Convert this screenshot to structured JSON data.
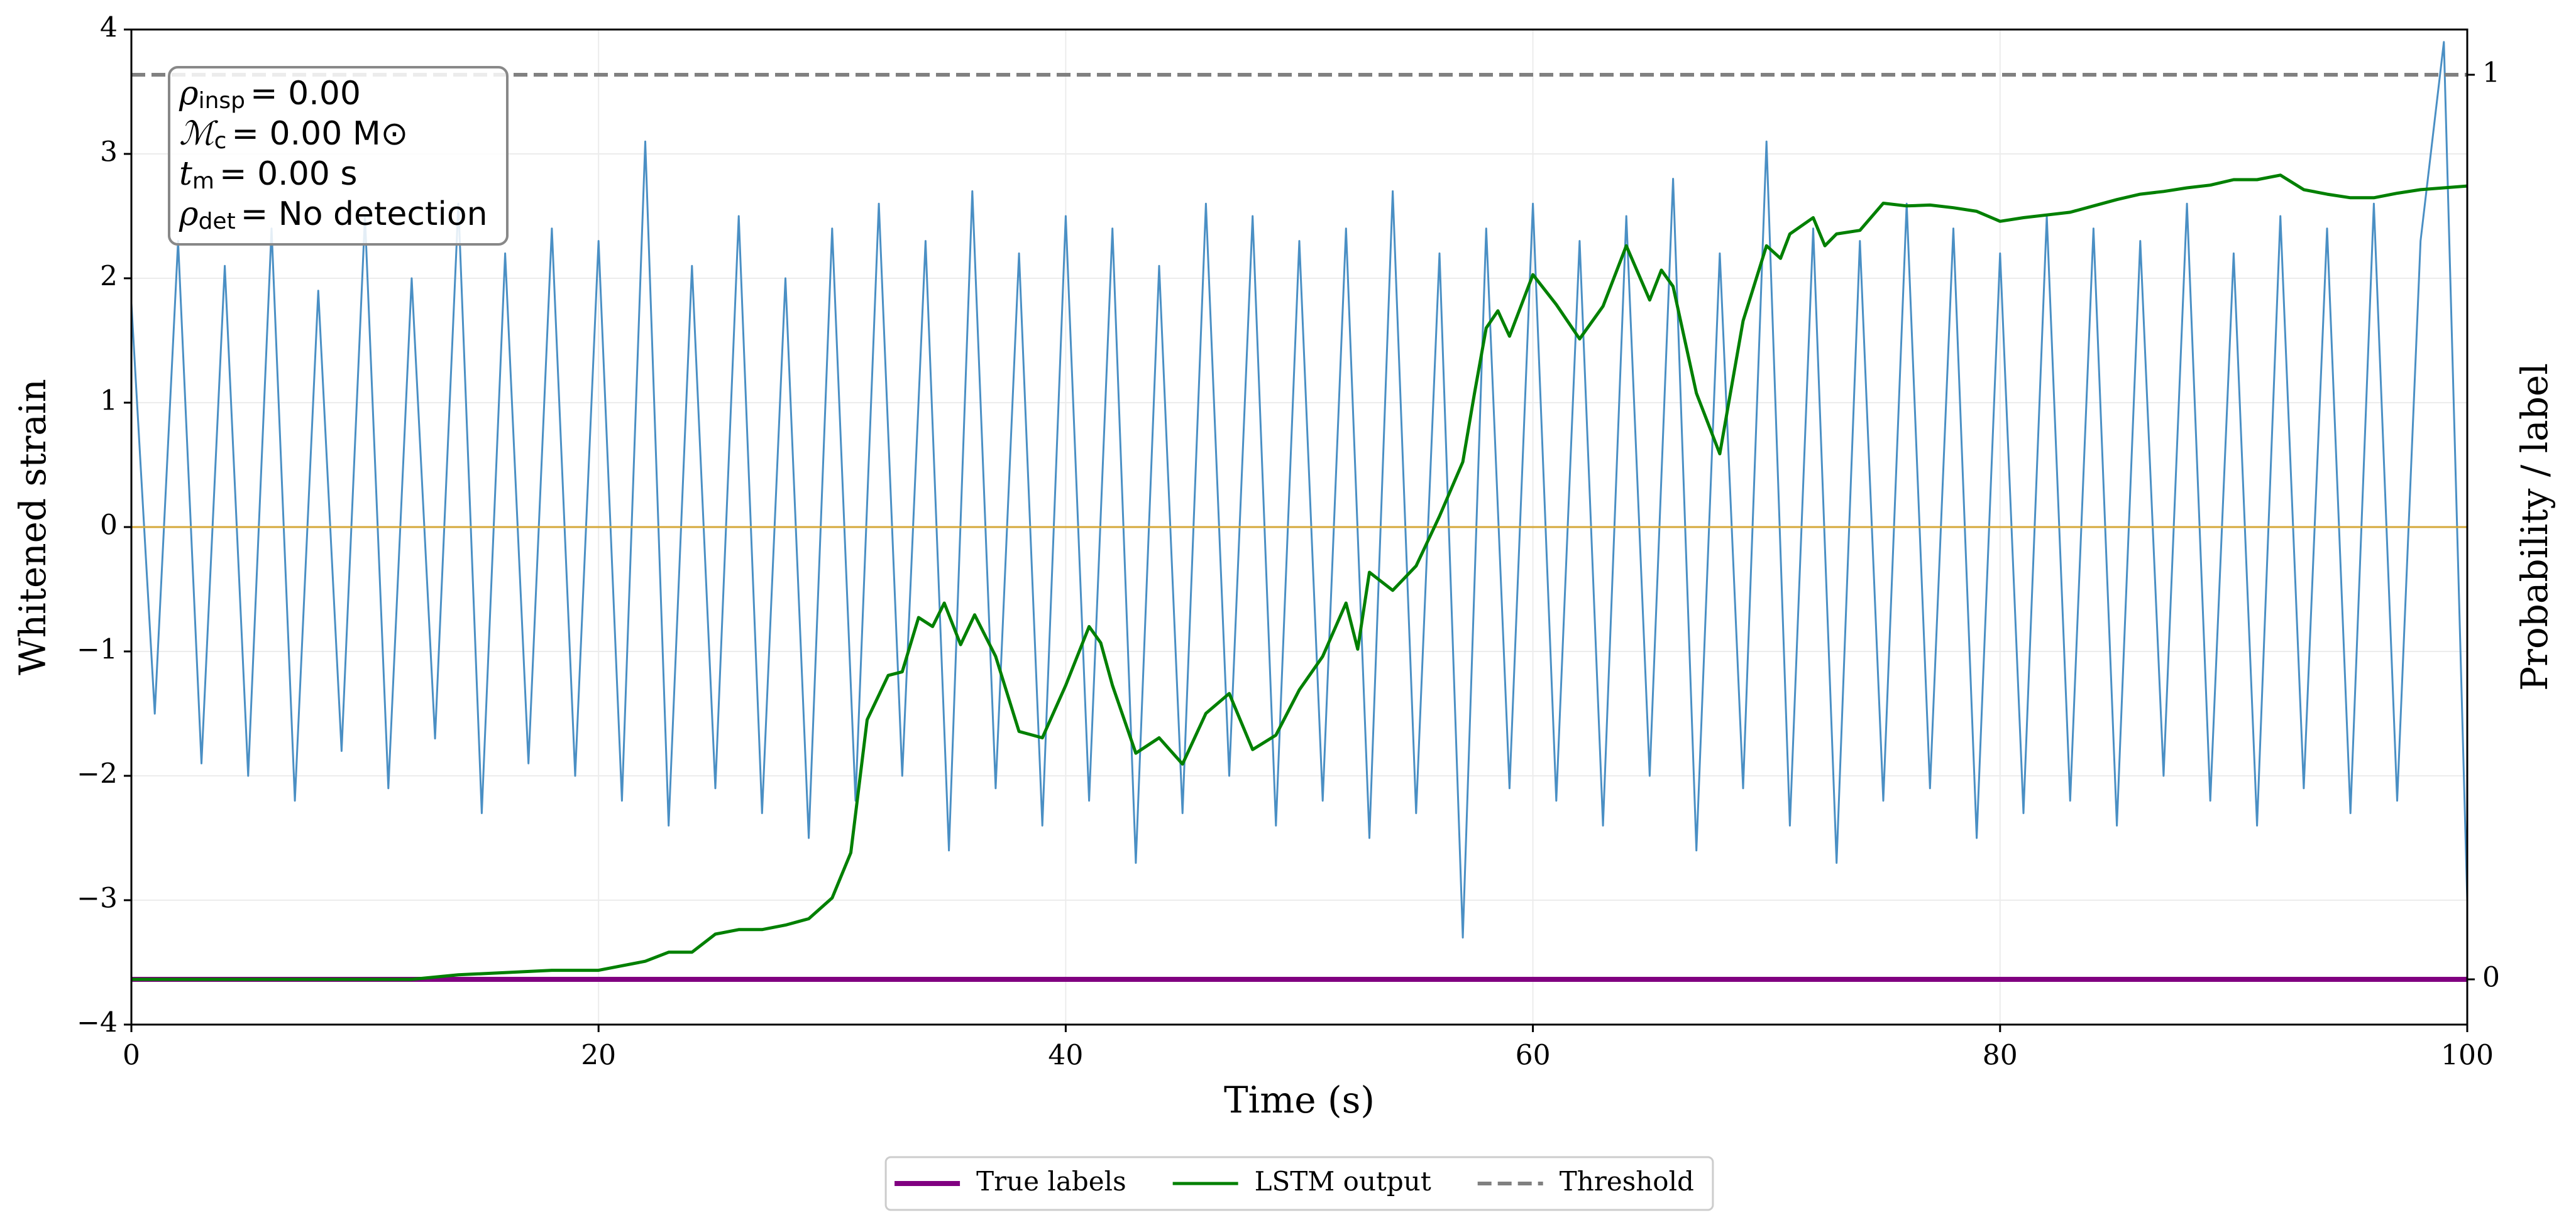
{
  "chart_data": {
    "type": "line",
    "xlabel": "Time (s)",
    "ylabel": "Whitened strain",
    "y2label": "Probability / label",
    "xlim": [
      0,
      100
    ],
    "xticks": [
      0,
      20,
      40,
      60,
      80,
      100
    ],
    "ylim": [
      -4,
      4
    ],
    "yticks": [
      {
        "value": -4,
        "label": "−4"
      },
      {
        "value": -3,
        "label": "−3"
      },
      {
        "value": -2,
        "label": "−2"
      },
      {
        "value": -1,
        "label": "−1"
      },
      0,
      1,
      2,
      3,
      4
    ],
    "y2lim": [
      -0.05,
      1.05
    ],
    "y2ticks": [
      0,
      1
    ],
    "grid": true,
    "legend": "lower center outside",
    "hlines": [
      {
        "value": 0,
        "color": "#d4a83a"
      }
    ],
    "annotation": [
      {
        "symbol": "ρ",
        "sub": "insp",
        "text": "= 0.00"
      },
      {
        "symbol": "ℳ",
        "sub": "c",
        "text": "= 0.00 M⊙"
      },
      {
        "symbol": "t",
        "sub": "m",
        "text": "= 0.00 s"
      },
      {
        "symbol": "ρ",
        "sub": "det",
        "text": "= No detection"
      }
    ],
    "series": [
      {
        "color": "#4a8fc4",
        "width": 3,
        "axis": "y",
        "x": [
          0,
          1,
          2,
          3,
          4,
          5,
          6,
          7,
          8,
          9,
          10,
          11,
          12,
          13,
          14,
          15,
          16,
          17,
          18,
          19,
          20,
          21,
          22,
          23,
          24,
          25,
          26,
          27,
          28,
          29,
          30,
          31,
          32,
          33,
          34,
          35,
          36,
          37,
          38,
          39,
          40,
          41,
          42,
          43,
          44,
          45,
          46,
          47,
          48,
          49,
          50,
          51,
          52,
          53,
          54,
          55,
          56,
          57,
          58,
          59,
          60,
          61,
          62,
          63,
          64,
          65,
          66,
          67,
          68,
          69,
          70,
          71,
          72,
          73,
          74,
          75,
          76,
          77,
          78,
          79,
          80,
          81,
          82,
          83,
          84,
          85,
          86,
          87,
          88,
          89,
          90,
          91,
          92,
          93,
          94,
          95,
          96,
          97,
          98,
          99,
          100
        ],
        "values": [
          1.8,
          -1.5,
          2.3,
          -1.9,
          2.1,
          -2.0,
          2.4,
          -2.2,
          1.9,
          -1.8,
          2.5,
          -2.1,
          2.0,
          -1.7,
          2.6,
          -2.3,
          2.2,
          -1.9,
          2.4,
          -2.0,
          2.3,
          -2.2,
          3.1,
          -2.4,
          2.1,
          -2.1,
          2.5,
          -2.3,
          2.0,
          -2.5,
          2.4,
          -2.2,
          2.6,
          -2.0,
          2.3,
          -2.6,
          2.7,
          -2.1,
          2.2,
          -2.4,
          2.5,
          -2.2,
          2.4,
          -2.7,
          2.1,
          -2.3,
          2.6,
          -2.0,
          2.5,
          -2.4,
          2.3,
          -2.2,
          2.4,
          -2.5,
          2.7,
          -2.3,
          2.2,
          -3.3,
          2.4,
          -2.1,
          2.6,
          -2.2,
          2.3,
          -2.4,
          2.5,
          -2.0,
          2.8,
          -2.6,
          2.2,
          -2.1,
          3.1,
          -2.4,
          2.4,
          -2.7,
          2.3,
          -2.2,
          2.6,
          -2.1,
          2.4,
          -2.5,
          2.2,
          -2.3,
          2.5,
          -2.2,
          2.4,
          -2.4,
          2.3,
          -2.0,
          2.6,
          -2.2,
          2.2,
          -2.4,
          2.5,
          -2.1,
          2.4,
          -2.3,
          2.6,
          -2.2,
          2.3,
          3.9,
          -3.0
        ]
      },
      {
        "name": "True labels",
        "color": "#800080",
        "width": 8,
        "axis": "y2",
        "x": [
          0,
          100
        ],
        "values": [
          0,
          0
        ]
      },
      {
        "name": "LSTM output",
        "color": "#008000",
        "width": 5,
        "axis": "y2",
        "x": [
          0,
          12,
          14,
          18,
          20,
          22,
          23,
          24,
          25,
          26,
          27,
          28,
          29,
          30,
          30.8,
          31.5,
          32.4,
          33,
          33.7,
          34.3,
          34.8,
          35.5,
          36.1,
          37,
          38,
          39,
          40,
          41,
          41.5,
          42,
          43,
          44,
          45,
          46,
          47,
          48,
          49,
          50,
          51,
          52,
          52.5,
          53,
          54,
          55,
          56,
          57,
          57.5,
          58,
          58.5,
          59,
          60,
          61,
          62,
          63,
          64,
          65,
          65.5,
          66,
          67,
          68,
          69,
          70,
          70.6,
          71,
          72,
          72.5,
          73,
          74,
          75,
          76,
          77,
          78,
          79,
          80,
          81,
          82,
          83,
          84,
          85,
          86,
          87,
          88,
          89,
          90,
          91,
          92,
          93,
          94,
          95,
          96,
          97,
          98,
          99,
          100
        ],
        "values": [
          0,
          0,
          0.005,
          0.01,
          0.01,
          0.02,
          0.03,
          0.03,
          0.05,
          0.055,
          0.055,
          0.06,
          0.067,
          0.09,
          0.14,
          0.287,
          0.336,
          0.34,
          0.4,
          0.39,
          0.416,
          0.37,
          0.403,
          0.357,
          0.274,
          0.267,
          0.325,
          0.39,
          0.372,
          0.325,
          0.25,
          0.267,
          0.238,
          0.294,
          0.316,
          0.254,
          0.27,
          0.32,
          0.357,
          0.416,
          0.365,
          0.45,
          0.43,
          0.457,
          0.512,
          0.572,
          0.648,
          0.72,
          0.739,
          0.711,
          0.779,
          0.746,
          0.708,
          0.744,
          0.811,
          0.751,
          0.784,
          0.766,
          0.648,
          0.581,
          0.728,
          0.811,
          0.797,
          0.824,
          0.842,
          0.811,
          0.824,
          0.828,
          0.858,
          0.855,
          0.856,
          0.853,
          0.849,
          0.838,
          0.842,
          0.845,
          0.848,
          0.855,
          0.862,
          0.868,
          0.871,
          0.875,
          0.878,
          0.884,
          0.884,
          0.889,
          0.873,
          0.868,
          0.864,
          0.864,
          0.869,
          0.873,
          0.875,
          0.877
        ]
      },
      {
        "name": "Threshold",
        "color": "#808080",
        "width": 6,
        "axis": "y2",
        "dash": true,
        "x": [
          0,
          100
        ],
        "values": [
          1,
          1
        ]
      }
    ]
  }
}
